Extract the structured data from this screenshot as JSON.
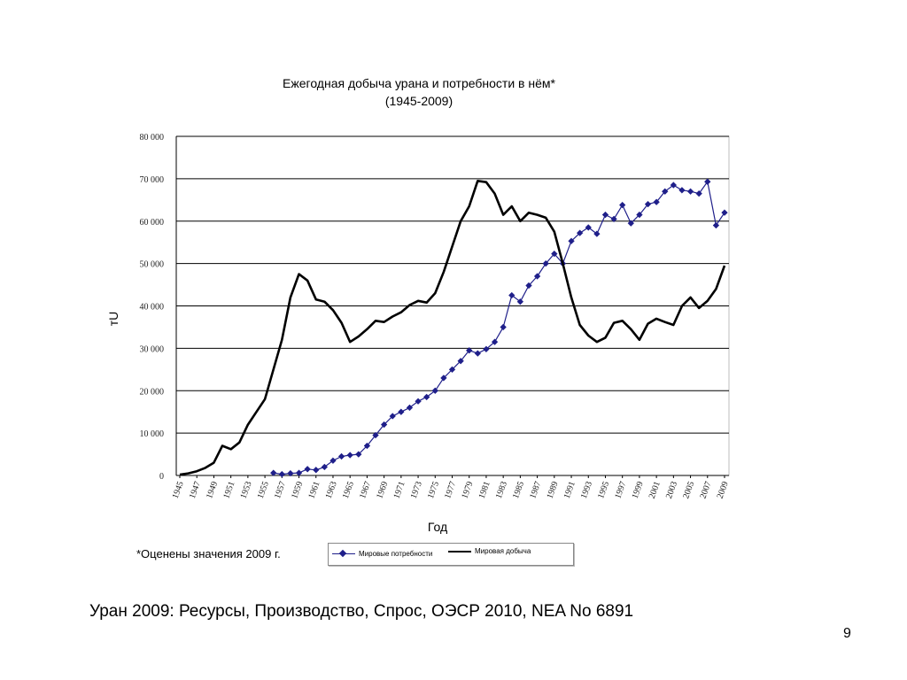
{
  "slide": {
    "note": "*Оценены значения 2009 г.",
    "source": "Уран 2009: Ресурсы, Производство, Спрос, ОЭСР 2010, NEA No 6891",
    "page_number": "9"
  },
  "chart_data": {
    "type": "line",
    "title": "Ежегодная добыча урана и потребности в нём*",
    "subtitle": "(1945-2009)",
    "xlabel": "Год",
    "ylabel": "тU",
    "ylim": [
      0,
      80000
    ],
    "xlim": [
      1945,
      2009
    ],
    "grid": "horizontal",
    "legend_position": "bottom",
    "y_ticks": [
      "0",
      "10 000",
      "20 000",
      "30 000",
      "40 000",
      "50 000",
      "60 000",
      "70 000",
      "80 000"
    ],
    "x_ticks": [
      "1945",
      "1947",
      "1949",
      "1951",
      "1953",
      "1955",
      "1957",
      "1959",
      "1961",
      "1963",
      "1965",
      "1967",
      "1969",
      "1971",
      "1973",
      "1975",
      "1977",
      "1979",
      "1981",
      "1983",
      "1985",
      "1987",
      "1989",
      "1991",
      "1993",
      "1995",
      "1997",
      "1999",
      "2001",
      "2003",
      "2005",
      "2007",
      "2009"
    ],
    "series": [
      {
        "name": "Мировые потребности",
        "color": "#1f1f8a",
        "marker": "diamond",
        "x": [
          1956,
          1957,
          1958,
          1959,
          1960,
          1961,
          1962,
          1963,
          1964,
          1965,
          1966,
          1967,
          1968,
          1969,
          1970,
          1971,
          1972,
          1973,
          1974,
          1975,
          1976,
          1977,
          1978,
          1979,
          1980,
          1981,
          1982,
          1983,
          1984,
          1985,
          1986,
          1987,
          1988,
          1989,
          1990,
          1991,
          1992,
          1993,
          1994,
          1995,
          1996,
          1997,
          1998,
          1999,
          2000,
          2001,
          2002,
          2003,
          2004,
          2005,
          2006,
          2007,
          2008,
          2009
        ],
        "values": [
          600,
          300,
          500,
          600,
          1500,
          1300,
          2000,
          3500,
          4500,
          4800,
          5000,
          7000,
          9500,
          12000,
          14000,
          15000,
          16000,
          17500,
          18500,
          20000,
          23000,
          25000,
          27000,
          29500,
          28800,
          29800,
          31500,
          35000,
          42500,
          41000,
          44800,
          47000,
          50000,
          52300,
          50000,
          55300,
          57200,
          58500,
          57000,
          61500,
          60500,
          63800,
          59500,
          61500,
          64000,
          64500,
          67000,
          68500,
          67300,
          67000,
          66500,
          69300,
          59000,
          62000
        ]
      },
      {
        "name": "Мировая добыча",
        "color": "#000000",
        "marker": "none",
        "x": [
          1945,
          1946,
          1947,
          1948,
          1949,
          1950,
          1951,
          1952,
          1953,
          1954,
          1955,
          1956,
          1957,
          1958,
          1959,
          1960,
          1961,
          1962,
          1963,
          1964,
          1965,
          1966,
          1967,
          1968,
          1969,
          1970,
          1971,
          1972,
          1973,
          1974,
          1975,
          1976,
          1977,
          1978,
          1979,
          1980,
          1981,
          1982,
          1983,
          1984,
          1985,
          1986,
          1987,
          1988,
          1989,
          1990,
          1991,
          1992,
          1993,
          1994,
          1995,
          1996,
          1997,
          1998,
          1999,
          2000,
          2001,
          2002,
          2003,
          2004,
          2005,
          2006,
          2007,
          2008,
          2009
        ],
        "values": [
          200,
          500,
          1000,
          1800,
          3000,
          7000,
          6200,
          7800,
          12000,
          15000,
          18000,
          25000,
          32000,
          42000,
          47500,
          46000,
          41500,
          41000,
          39000,
          36000,
          31500,
          32800,
          34500,
          36500,
          36200,
          37500,
          38500,
          40200,
          41200,
          40800,
          43000,
          48000,
          54000,
          60000,
          63500,
          69500,
          69200,
          66500,
          61500,
          63500,
          60000,
          62000,
          61500,
          60800,
          57500,
          50000,
          42000,
          35500,
          33000,
          31500,
          32500,
          36000,
          36500,
          34500,
          32000,
          35800,
          37000,
          36200,
          35500,
          40000,
          42000,
          39500,
          41200,
          44000,
          49500
        ]
      }
    ]
  }
}
